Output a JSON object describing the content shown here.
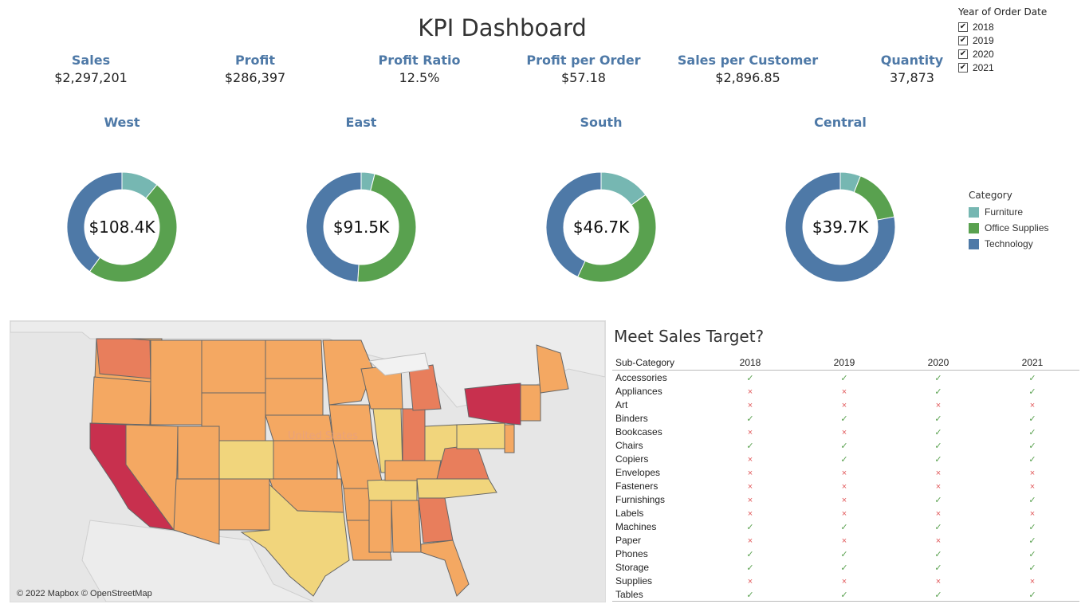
{
  "dashboard": {
    "title": "KPI Dashboard"
  },
  "kpis": [
    {
      "label": "Sales",
      "value": "$2,297,201"
    },
    {
      "label": "Profit",
      "value": "$286,397"
    },
    {
      "label": "Profit Ratio",
      "value": "12.5%"
    },
    {
      "label": "Profit per Order",
      "value": "$57.18"
    },
    {
      "label": "Sales per Customer",
      "value": "$2,896.85"
    },
    {
      "label": "Quantity",
      "value": "37,873"
    }
  ],
  "year_filter": {
    "header": "Year of Order Date",
    "years": [
      "2018",
      "2019",
      "2020",
      "2021"
    ],
    "check_mark": "✔"
  },
  "legend": {
    "header": "Category",
    "items": [
      {
        "label": "Furniture",
        "color": "#76b7b2"
      },
      {
        "label": "Office Supplies",
        "color": "#59a14f"
      },
      {
        "label": "Technology",
        "color": "#4e79a7"
      }
    ]
  },
  "chart_data": [
    {
      "type": "pie",
      "title": "West",
      "center_label": "$108.4K",
      "categories": [
        "Furniture",
        "Office Supplies",
        "Technology"
      ],
      "values": [
        0.11,
        0.49,
        0.4
      ]
    },
    {
      "type": "pie",
      "title": "East",
      "center_label": "$91.5K",
      "categories": [
        "Furniture",
        "Office Supplies",
        "Technology"
      ],
      "values": [
        0.04,
        0.47,
        0.49
      ]
    },
    {
      "type": "pie",
      "title": "South",
      "center_label": "$46.7K",
      "categories": [
        "Furniture",
        "Office Supplies",
        "Technology"
      ],
      "values": [
        0.15,
        0.42,
        0.43
      ]
    },
    {
      "type": "pie",
      "title": "Central",
      "center_label": "$39.7K",
      "categories": [
        "Furniture",
        "Office Supplies",
        "Technology"
      ],
      "values": [
        0.06,
        0.16,
        0.78
      ]
    }
  ],
  "map": {
    "label": "United States",
    "attribution": "© 2022 Mapbox © OpenStreetMap",
    "scale_colors": [
      "#c8304e",
      "#e87e5c",
      "#f4a862",
      "#f1d57c"
    ]
  },
  "sales_target": {
    "title": "Meet Sales Target?",
    "column_header": "Sub-Category",
    "years": [
      "2018",
      "2019",
      "2020",
      "2021"
    ],
    "yes_symbol": "✓",
    "no_symbol": "×",
    "rows": [
      {
        "name": "Accessories",
        "met": [
          true,
          true,
          true,
          true
        ]
      },
      {
        "name": "Appliances",
        "met": [
          false,
          false,
          true,
          true
        ]
      },
      {
        "name": "Art",
        "met": [
          false,
          false,
          false,
          false
        ]
      },
      {
        "name": "Binders",
        "met": [
          true,
          true,
          true,
          true
        ]
      },
      {
        "name": "Bookcases",
        "met": [
          false,
          false,
          true,
          true
        ]
      },
      {
        "name": "Chairs",
        "met": [
          true,
          true,
          true,
          true
        ]
      },
      {
        "name": "Copiers",
        "met": [
          false,
          true,
          true,
          true
        ]
      },
      {
        "name": "Envelopes",
        "met": [
          false,
          false,
          false,
          false
        ]
      },
      {
        "name": "Fasteners",
        "met": [
          false,
          false,
          false,
          false
        ]
      },
      {
        "name": "Furnishings",
        "met": [
          false,
          false,
          true,
          true
        ]
      },
      {
        "name": "Labels",
        "met": [
          false,
          false,
          false,
          false
        ]
      },
      {
        "name": "Machines",
        "met": [
          true,
          true,
          true,
          true
        ]
      },
      {
        "name": "Paper",
        "met": [
          false,
          false,
          false,
          true
        ]
      },
      {
        "name": "Phones",
        "met": [
          true,
          true,
          true,
          true
        ]
      },
      {
        "name": "Storage",
        "met": [
          true,
          true,
          true,
          true
        ]
      },
      {
        "name": "Supplies",
        "met": [
          false,
          false,
          false,
          false
        ]
      },
      {
        "name": "Tables",
        "met": [
          true,
          true,
          true,
          true
        ]
      }
    ]
  }
}
